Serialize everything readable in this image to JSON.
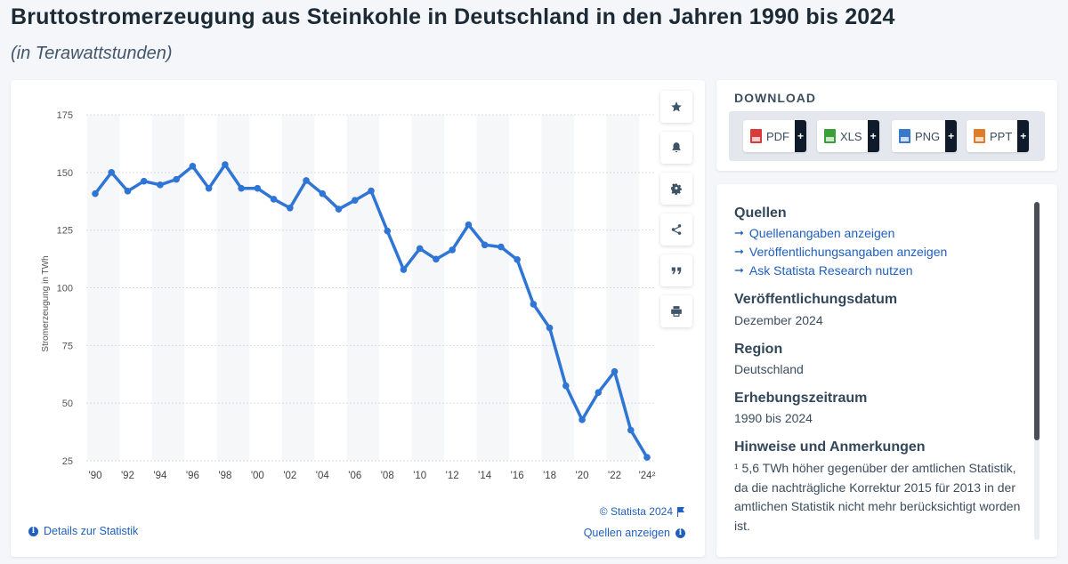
{
  "header": {
    "title": "Bruttostromerzeugung aus Steinkohle in Deutschland in den Jahren 1990 bis 2024",
    "subtitle": "(in Terawattstunden)"
  },
  "toolbar": {
    "icons": [
      "star-icon",
      "bell-icon",
      "gear-icon",
      "share-icon",
      "quote-icon",
      "print-icon"
    ]
  },
  "chart_footer": {
    "copyright": "© Statista 2024",
    "details_link": "Details zur Statistik",
    "sources_link": "Quellen anzeigen"
  },
  "download": {
    "title": "DOWNLOAD",
    "buttons": [
      {
        "label": "PDF",
        "color": "#d93a3a"
      },
      {
        "label": "XLS",
        "color": "#3a9e3a"
      },
      {
        "label": "PNG",
        "color": "#3a78c9"
      },
      {
        "label": "PPT",
        "color": "#e07b2a"
      }
    ],
    "plus": "+"
  },
  "info": {
    "sources_heading": "Quellen",
    "source_links": [
      "Quellenangaben anzeigen",
      "Veröffentlichungsangaben anzeigen",
      "Ask Statista Research nutzen"
    ],
    "pub_date_heading": "Veröffentlichungsdatum",
    "pub_date": "Dezember 2024",
    "region_heading": "Region",
    "region": "Deutschland",
    "period_heading": "Erhebungszeitraum",
    "period": "1990 bis 2024",
    "notes_heading": "Hinweise und Anmerkungen",
    "notes": "¹ 5,6 TWh höher gegenüber der amtlichen Statistik, da die nachträgliche Korrektur 2015 für 2013 in der amtlichen Statistik nicht mehr berücksichtigt worden ist."
  },
  "chart_data": {
    "type": "line",
    "ylabel": "Stromerzeugung in TWh",
    "ylim": [
      25,
      175
    ],
    "yticks": [
      25,
      50,
      75,
      100,
      125,
      150,
      175
    ],
    "x": [
      1990,
      1991,
      1992,
      1993,
      1994,
      1995,
      1996,
      1997,
      1998,
      1999,
      2000,
      2001,
      2002,
      2003,
      2004,
      2005,
      2006,
      2007,
      2008,
      2009,
      2010,
      2011,
      2012,
      2013,
      2014,
      2015,
      2016,
      2017,
      2018,
      2019,
      2020,
      2021,
      2022,
      2023,
      2024
    ],
    "xtick_labels": [
      "'90",
      "'92",
      "'94",
      "'96",
      "'98",
      "'00",
      "'02",
      "'04",
      "'06",
      "'08",
      "'10",
      "'12",
      "'14",
      "'16",
      "'18",
      "'20",
      "'22",
      "'24²"
    ],
    "series": [
      {
        "values": [
          140.8,
          150.0,
          141.9,
          146.2,
          144.6,
          147.0,
          152.7,
          143.1,
          153.4,
          143.1,
          143.1,
          138.4,
          134.6,
          146.5,
          140.8,
          134.1,
          137.9,
          142.0,
          124.6,
          107.9,
          117.0,
          112.4,
          116.4,
          127.3,
          118.6,
          117.7,
          112.2,
          92.9,
          82.6,
          57.5,
          42.8,
          54.6,
          63.7,
          38.3,
          26.5
        ],
        "color": "#2e75d6"
      }
    ],
    "grid": true,
    "legend": "none"
  }
}
